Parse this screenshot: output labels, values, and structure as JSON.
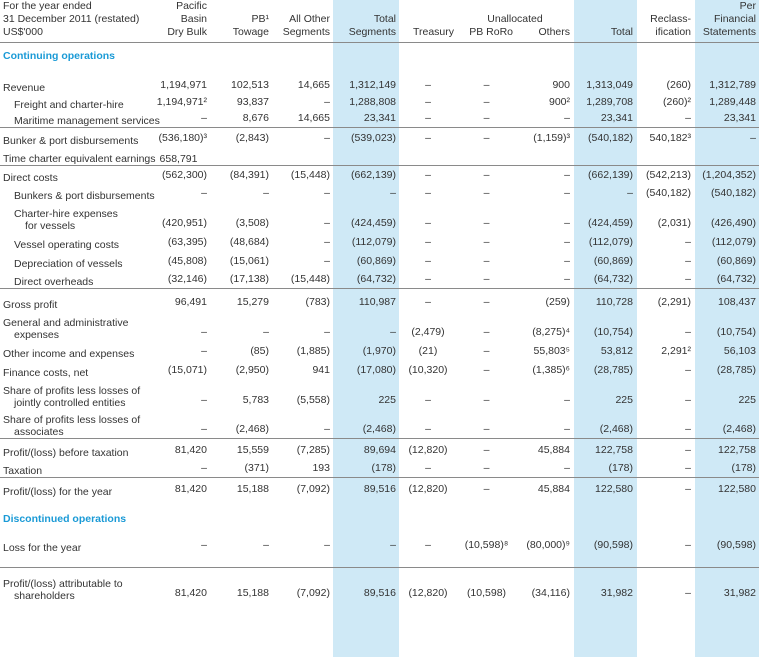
{
  "header": {
    "label_lines": [
      "For the year ended",
      "31 December 2011 (restated)",
      "US$'000"
    ],
    "columns": [
      [
        "Pacific",
        "Basin",
        "Dry Bulk"
      ],
      [
        "",
        "PB¹",
        "Towage"
      ],
      [
        "",
        "All Other",
        "Segments"
      ],
      [
        "",
        "Total",
        "Segments"
      ],
      [
        "",
        "",
        "Treasury"
      ],
      [
        "",
        "Unallocated",
        "PB RoRo"
      ],
      [
        "",
        "",
        "Others"
      ],
      [
        "",
        "",
        "Total"
      ],
      [
        "",
        "Reclass-",
        "ification"
      ],
      [
        "Per",
        "Financial",
        "Statements"
      ]
    ]
  },
  "sections": {
    "continuing": "Continuing operations",
    "discontinued": "Discontinued operations"
  },
  "rows": [
    {
      "type": "data",
      "style": "main",
      "label": [
        "Revenue"
      ],
      "cells": [
        "1,194,971",
        "102,513",
        "14,665",
        "1,312,149",
        "–",
        "–",
        "900",
        "1,313,049",
        "(260)",
        "1,312,789"
      ]
    },
    {
      "type": "data",
      "style": "sub",
      "label": [
        "Freight and charter-hire"
      ],
      "cells": [
        "1,194,971²",
        "93,837",
        "–",
        "1,288,808",
        "–",
        "–",
        "900²",
        "1,289,708",
        "(260)²",
        "1,289,448"
      ]
    },
    {
      "type": "data",
      "style": "sub",
      "label": [
        "Maritime management services"
      ],
      "cells": [
        "–",
        "8,676",
        "14,665",
        "23,341",
        "–",
        "–",
        "–",
        "23,341",
        "–",
        "23,341"
      ]
    },
    {
      "type": "data",
      "style": "main",
      "label": [
        "Bunker & port disbursements"
      ],
      "cells": [
        "(536,180)³",
        "(2,843)",
        "–",
        "(539,023)",
        "–",
        "–",
        "(1,159)³",
        "(540,182)",
        "540,182³",
        "–"
      ]
    },
    {
      "type": "data",
      "style": "main",
      "label": [
        "Time charter equivalent earnings"
      ],
      "inline": "658,791",
      "cells": [
        "",
        "",
        "",
        "",
        "",
        "",
        "",
        "",
        "",
        ""
      ]
    },
    {
      "type": "data",
      "style": "main",
      "label": [
        "Direct costs"
      ],
      "cells": [
        "(562,300)",
        "(84,391)",
        "(15,448)",
        "(662,139)",
        "–",
        "–",
        "–",
        "(662,139)",
        "(542,213)",
        "(1,204,352)"
      ]
    },
    {
      "type": "data",
      "style": "sub",
      "label": [
        "Bunkers & port disbursements"
      ],
      "cells": [
        "–",
        "–",
        "–",
        "–",
        "–",
        "–",
        "–",
        "–",
        "(540,182)",
        "(540,182)"
      ]
    },
    {
      "type": "data",
      "style": "sub",
      "label": [
        "Charter-hire expenses",
        "for vessels"
      ],
      "cells": [
        "(420,951)",
        "(3,508)",
        "–",
        "(424,459)",
        "–",
        "–",
        "–",
        "(424,459)",
        "(2,031)",
        "(426,490)"
      ]
    },
    {
      "type": "data",
      "style": "sub",
      "label": [
        "Vessel operating costs"
      ],
      "cells": [
        "(63,395)",
        "(48,684)",
        "–",
        "(112,079)",
        "–",
        "–",
        "–",
        "(112,079)",
        "–",
        "(112,079)"
      ]
    },
    {
      "type": "data",
      "style": "sub",
      "label": [
        "Depreciation of vessels"
      ],
      "cells": [
        "(45,808)",
        "(15,061)",
        "–",
        "(60,869)",
        "–",
        "–",
        "–",
        "(60,869)",
        "–",
        "(60,869)"
      ]
    },
    {
      "type": "data",
      "style": "sub",
      "label": [
        "Direct overheads"
      ],
      "cells": [
        "(32,146)",
        "(17,138)",
        "(15,448)",
        "(64,732)",
        "–",
        "–",
        "–",
        "(64,732)",
        "–",
        "(64,732)"
      ]
    },
    {
      "type": "data",
      "style": "main",
      "label": [
        "Gross profit"
      ],
      "cells": [
        "96,491",
        "15,279",
        "(783)",
        "110,987",
        "–",
        "–",
        "(259)",
        "110,728",
        "(2,291)",
        "108,437"
      ]
    },
    {
      "type": "data",
      "style": "main",
      "label": [
        "General and administrative",
        "expenses"
      ],
      "cells": [
        "–",
        "–",
        "–",
        "–",
        "(2,479)",
        "–",
        "(8,275)⁴",
        "(10,754)",
        "–",
        "(10,754)"
      ]
    },
    {
      "type": "data",
      "style": "main",
      "label": [
        "Other income and expenses"
      ],
      "cells": [
        "–",
        "(85)",
        "(1,885)",
        "(1,970)",
        "(21)",
        "–",
        "55,803⁵",
        "53,812",
        "2,291²",
        "56,103"
      ]
    },
    {
      "type": "data",
      "style": "main",
      "label": [
        "Finance costs, net"
      ],
      "cells": [
        "(15,071)",
        "(2,950)",
        "941",
        "(17,080)",
        "(10,320)",
        "–",
        "(1,385)⁶",
        "(28,785)",
        "–",
        "(28,785)"
      ]
    },
    {
      "type": "data",
      "style": "main",
      "label": [
        "Share of profits less losses of",
        "jointly controlled entities"
      ],
      "cells": [
        "–",
        "5,783",
        "(5,558)",
        "225",
        "–",
        "–",
        "–",
        "225",
        "–",
        "225"
      ]
    },
    {
      "type": "data",
      "style": "main",
      "label": [
        "Share of profits less losses of",
        "associates"
      ],
      "cells": [
        "–",
        "(2,468)",
        "–",
        "(2,468)",
        "–",
        "–",
        "–",
        "(2,468)",
        "–",
        "(2,468)"
      ]
    },
    {
      "type": "data",
      "style": "main",
      "label": [
        "Profit/(loss) before taxation"
      ],
      "cells": [
        "81,420",
        "15,559",
        "(7,285)",
        "89,694",
        "(12,820)",
        "–",
        "45,884",
        "122,758",
        "–",
        "122,758"
      ]
    },
    {
      "type": "data",
      "style": "main",
      "label": [
        "Taxation"
      ],
      "cells": [
        "–",
        "(371)",
        "193",
        "(178)",
        "–",
        "–",
        "–",
        "(178)",
        "–",
        "(178)"
      ]
    },
    {
      "type": "data",
      "style": "main",
      "label": [
        "Profit/(loss) for the year"
      ],
      "cells": [
        "81,420",
        "15,188",
        "(7,092)",
        "89,516",
        "(12,820)",
        "–",
        "45,884",
        "122,580",
        "–",
        "122,580"
      ]
    },
    {
      "type": "data",
      "style": "main",
      "label": [
        "Loss for the year"
      ],
      "cells": [
        "–",
        "–",
        "–",
        "–",
        "–",
        "(10,598)⁸",
        "(80,000)⁹",
        "(90,598)",
        "–",
        "(90,598)"
      ]
    },
    {
      "type": "data",
      "style": "main",
      "label": [
        "Profit/(loss) attributable to",
        "shareholders"
      ],
      "cells": [
        "81,420",
        "15,188",
        "(7,092)",
        "89,516",
        "(12,820)",
        "(10,598)",
        "(34,116)",
        "31,982",
        "–",
        "31,982"
      ]
    }
  ]
}
